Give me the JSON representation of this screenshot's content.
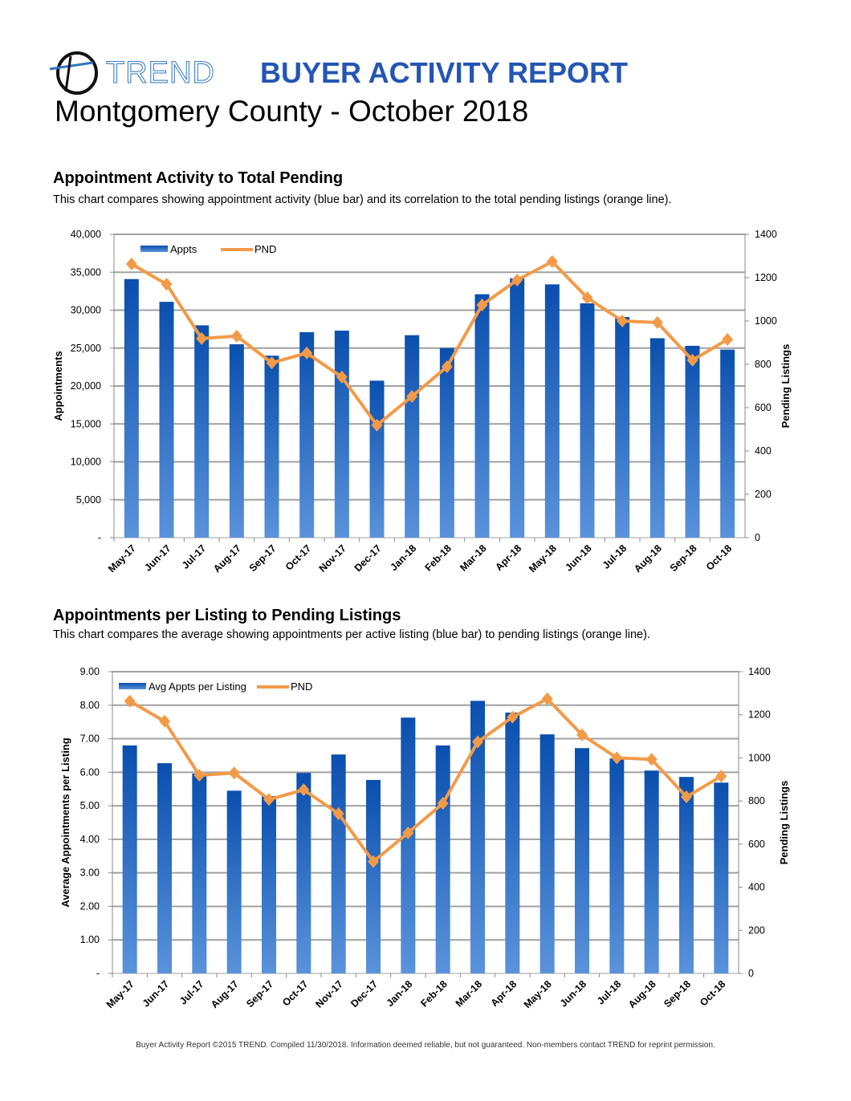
{
  "header": {
    "brand": "TREND",
    "report_title": "BUYER ACTIVITY REPORT",
    "subtitle": "Montgomery County -  October 2018"
  },
  "colors": {
    "bar_top": "#0a4fae",
    "bar_bottom": "#5a93db",
    "line": "#f39a48",
    "grid": "#a0a0a0",
    "title_blue": "#2456b4"
  },
  "chart_data": [
    {
      "type": "bar+line",
      "title": "Appointment Activity to Total Pending",
      "description": "This chart compares showing appointment activity (blue bar) and its correlation to the total pending listings (orange line).",
      "categories": [
        "May-17",
        "Jun-17",
        "Jul-17",
        "Aug-17",
        "Sep-17",
        "Oct-17",
        "Nov-17",
        "Dec-17",
        "Jan-18",
        "Feb-18",
        "Mar-18",
        "Apr-18",
        "May-18",
        "Jun-18",
        "Jul-18",
        "Aug-18",
        "Sep-18",
        "Oct-18"
      ],
      "series": [
        {
          "name": "Appts",
          "type": "bar",
          "axis": "left",
          "values": [
            34100,
            31100,
            28000,
            25500,
            24000,
            27100,
            27300,
            20700,
            26700,
            25000,
            32100,
            34200,
            33400,
            30900,
            29100,
            26300,
            25300,
            24800
          ]
        },
        {
          "name": "PND",
          "type": "line",
          "axis": "right",
          "values": [
            1263,
            1170,
            919,
            930,
            807,
            852,
            741,
            519,
            652,
            789,
            1074,
            1189,
            1274,
            1107,
            1000,
            993,
            819,
            915
          ]
        }
      ],
      "ylabel": "Appointments",
      "y2label": "Pending Listings",
      "ylim": [
        0,
        40000
      ],
      "y2lim": [
        0,
        1400
      ],
      "yticks": [
        "-",
        "5,000",
        "10,000",
        "15,000",
        "20,000",
        "25,000",
        "30,000",
        "35,000",
        "40,000"
      ],
      "y2ticks": [
        "0",
        "200",
        "400",
        "600",
        "800",
        "1000",
        "1200",
        "1400"
      ],
      "grid": true,
      "legend": "top-left"
    },
    {
      "type": "bar+line",
      "title": "Appointments per Listing to Pending Listings",
      "description": "This chart compares the average showing appointments per active listing (blue bar) to pending listings (orange line).",
      "categories": [
        "May-17",
        "Jun-17",
        "Jul-17",
        "Aug-17",
        "Sep-17",
        "Oct-17",
        "Nov-17",
        "Dec-17",
        "Jan-18",
        "Feb-18",
        "Mar-18",
        "Apr-18",
        "May-18",
        "Jun-18",
        "Jul-18",
        "Aug-18",
        "Sep-18",
        "Oct-18"
      ],
      "series": [
        {
          "name": "Avg Appts per Listing",
          "type": "bar",
          "axis": "left",
          "values": [
            6.8,
            6.27,
            5.96,
            5.45,
            5.29,
            5.98,
            6.53,
            5.77,
            7.63,
            6.8,
            8.13,
            7.78,
            7.13,
            6.72,
            6.41,
            6.05,
            5.86,
            5.69
          ]
        },
        {
          "name": "PND",
          "type": "line",
          "axis": "right",
          "values": [
            1263,
            1170,
            919,
            930,
            807,
            852,
            741,
            519,
            652,
            789,
            1074,
            1189,
            1274,
            1107,
            1000,
            993,
            819,
            915
          ]
        }
      ],
      "ylabel": "Average Appointments per Listing",
      "y2label": "Pending Listings",
      "ylim": [
        0,
        9
      ],
      "y2lim": [
        0,
        1400
      ],
      "yticks": [
        "-",
        "1.00",
        "2.00",
        "3.00",
        "4.00",
        "5.00",
        "6.00",
        "7.00",
        "8.00",
        "9.00"
      ],
      "y2ticks": [
        "0",
        "200",
        "400",
        "600",
        "800",
        "1000",
        "1200",
        "1400"
      ],
      "grid": true,
      "legend": "top-left"
    }
  ],
  "footer": "Buyer Activity Report ©2015 TREND. Compiled  11/30/2018. Information deemed reliable, but not guaranteed. Non-members contact TREND for reprint permission."
}
